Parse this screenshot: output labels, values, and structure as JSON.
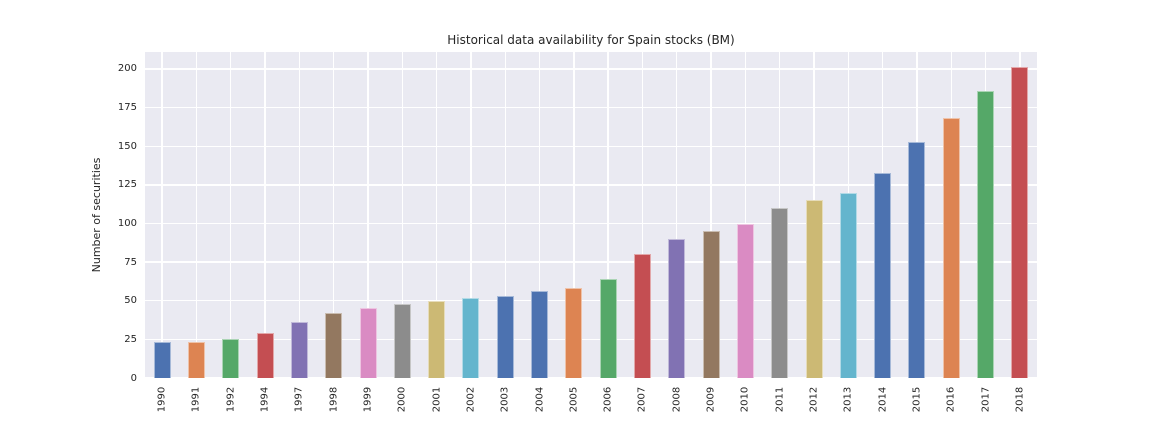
{
  "figure": {
    "title": "Historical data availability for Spain stocks (BM)"
  },
  "chart_data": {
    "type": "bar",
    "title": "Historical data availability for Spain stocks (BM)",
    "xlabel": "",
    "ylabel": "Number of securities",
    "categories": [
      "1990",
      "1991",
      "1992",
      "1994",
      "1997",
      "1998",
      "1999",
      "2000",
      "2001",
      "2002",
      "2003",
      "2004",
      "2005",
      "2006",
      "2007",
      "2008",
      "2009",
      "2010",
      "2011",
      "2012",
      "2013",
      "2014",
      "2015",
      "2016",
      "2017",
      "2018"
    ],
    "values": [
      23,
      23,
      25,
      29,
      36,
      42,
      45,
      48,
      50,
      52,
      53,
      56,
      58,
      64,
      80,
      90,
      95,
      100,
      110,
      115,
      120,
      133,
      153,
      168,
      186,
      201
    ],
    "yticks": [
      0,
      25,
      50,
      75,
      100,
      125,
      150,
      175,
      200
    ],
    "ylim": [
      0,
      211
    ],
    "grid": true,
    "legend": false,
    "plot_background": "#eaeaf2",
    "grid_color": "#ffffff",
    "text_color": "#262626",
    "palette_cycle": [
      "#4c72b0",
      "#dd8452",
      "#55a868",
      "#c44e52",
      "#8172b3",
      "#937860",
      "#da8bc3",
      "#8c8c8c",
      "#ccb974",
      "#64b5cd",
      "#4c72b0"
    ]
  }
}
